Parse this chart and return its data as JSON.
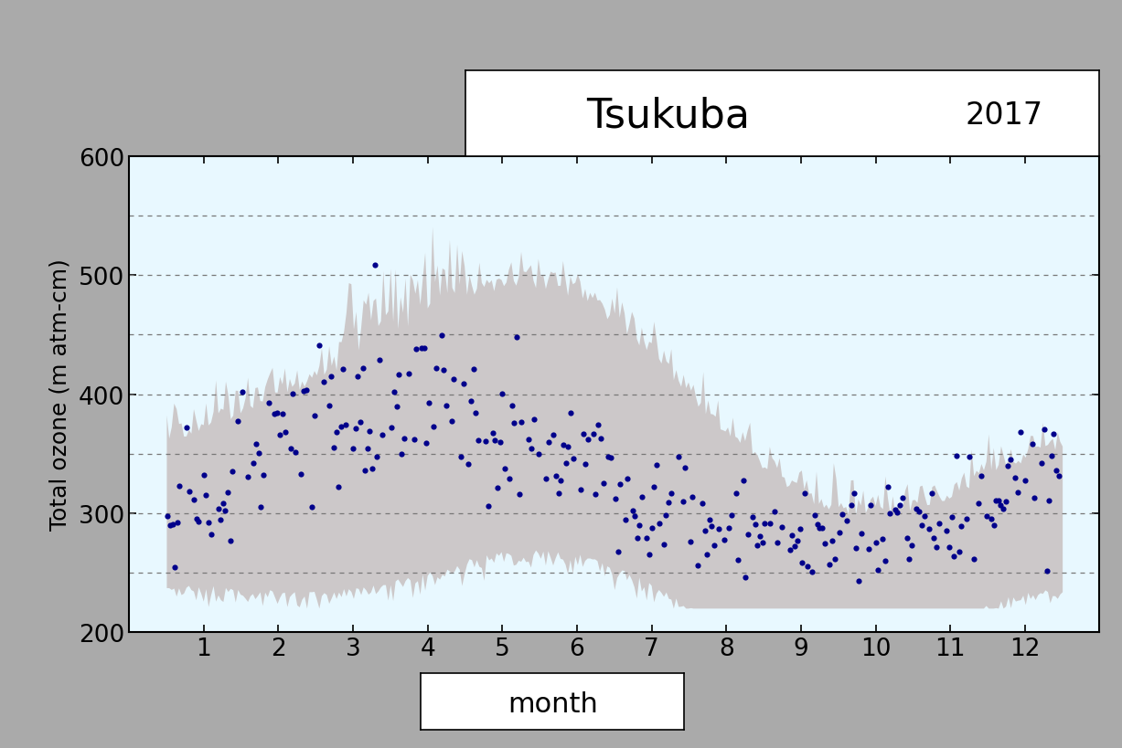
{
  "title_station": "Tsukuba",
  "title_year": "2017",
  "xlabel": "month",
  "ylabel": "Total ozone (m atm-cm)",
  "ylim": [
    200,
    600
  ],
  "xlim": [
    0.0,
    13.0
  ],
  "yticks": [
    200,
    300,
    400,
    500,
    600
  ],
  "grid_lines": [
    250,
    300,
    350,
    400,
    450,
    500,
    550
  ],
  "xticks": [
    1,
    2,
    3,
    4,
    5,
    6,
    7,
    8,
    9,
    10,
    11,
    12
  ],
  "plot_bg_color": "#e8f8ff",
  "outer_bg_color": "#aaaaaa",
  "grid_color": "#777777",
  "shade_color": "#c8c0c0",
  "dot_color": "#00008b",
  "shade_alpha": 0.85
}
